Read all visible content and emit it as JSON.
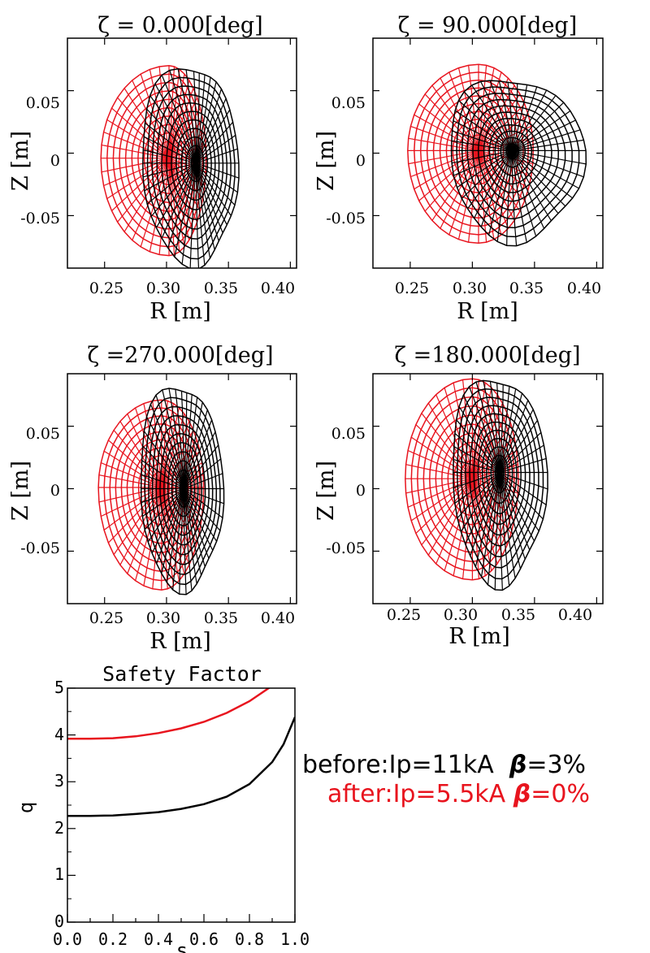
{
  "colors": {
    "before": "#000000",
    "after": "#e8141e"
  },
  "legend": {
    "before": {
      "name": "before:",
      "ip": "Ip=11kA",
      "beta_sym": "β",
      "beta": "=3%"
    },
    "after": {
      "name": "after:",
      "ip": "Ip=5.5kA",
      "beta_sym": "β",
      "beta": "=0%"
    }
  },
  "chart_data": [
    {
      "type": "line",
      "title": "ζ  =   0.000[deg]",
      "xlabel": "R [m]",
      "ylabel": "Z [m]",
      "xlim": [
        0.22,
        0.405
      ],
      "ylim": [
        -0.092,
        0.092
      ],
      "xticks": [
        "0.25",
        "0.30",
        "0.35",
        "0.40"
      ],
      "yticks": [
        "0.05",
        "0",
        "-0.05"
      ],
      "series": [
        {
          "axis_R": 0.302,
          "axis_Z": -0.004,
          "R_min": 0.247,
          "R_max": 0.332,
          "Z_max": 0.07,
          "Z_min": -0.082
        },
        {
          "axis_R": 0.324,
          "axis_Z": -0.008,
          "R_min": 0.279,
          "R_max": 0.357,
          "Z_max": 0.07,
          "Z_min": -0.088
        }
      ]
    },
    {
      "type": "line",
      "title": "ζ  = 90.000[deg]",
      "xlabel": "R [m]",
      "ylabel": "Z [m]",
      "xlim": [
        0.22,
        0.405
      ],
      "ylim": [
        -0.092,
        0.092
      ],
      "xticks": [
        "0.25",
        "0.30",
        "0.35",
        "0.40"
      ],
      "yticks": [
        "0.05",
        "0",
        "-0.05"
      ],
      "series": [
        {
          "axis_R": 0.305,
          "axis_Z": 0.002,
          "R_min": 0.248,
          "R_max": 0.349,
          "Z_max": 0.071,
          "Z_min": -0.072
        },
        {
          "axis_R": 0.332,
          "axis_Z": 0.002,
          "R_min": 0.281,
          "R_max": 0.389,
          "Z_max": 0.06,
          "Z_min": -0.07
        }
      ]
    },
    {
      "type": "line",
      "title": "ζ  =270.000[deg]",
      "xlabel": "R [m]",
      "ylabel": "Z [m]",
      "xlim": [
        0.22,
        0.405
      ],
      "ylim": [
        -0.092,
        0.092
      ],
      "xticks": [
        "0.25",
        "0.30",
        "0.35",
        "0.40"
      ],
      "yticks": [
        "0.05",
        "0",
        "-0.05"
      ],
      "series": [
        {
          "axis_R": 0.296,
          "axis_Z": 0.001,
          "R_min": 0.245,
          "R_max": 0.33,
          "Z_max": 0.071,
          "Z_min": -0.081
        },
        {
          "axis_R": 0.314,
          "axis_Z": 0.0,
          "R_min": 0.278,
          "R_max": 0.345,
          "Z_max": 0.083,
          "Z_min": -0.08
        }
      ]
    },
    {
      "type": "line",
      "title": "ζ  =180.000[deg]",
      "xlabel": "R [m]",
      "ylabel": "Z [m]",
      "xlim": [
        0.22,
        0.405
      ],
      "ylim": [
        -0.092,
        0.092
      ],
      "xticks": [
        "0.25",
        "0.30",
        "0.35",
        "0.40"
      ],
      "yticks": [
        "0.05",
        "0",
        "-0.05"
      ],
      "series": [
        {
          "axis_R": 0.3,
          "axis_Z": 0.008,
          "R_min": 0.246,
          "R_max": 0.337,
          "Z_max": 0.088,
          "Z_min": -0.073
        },
        {
          "axis_R": 0.322,
          "axis_Z": 0.013,
          "R_min": 0.283,
          "R_max": 0.359,
          "Z_max": 0.089,
          "Z_min": -0.076
        }
      ]
    },
    {
      "type": "line",
      "title": "Safety Factor",
      "xlabel": "s",
      "ylabel": "q",
      "xlim": [
        0.0,
        1.0
      ],
      "ylim": [
        0,
        5
      ],
      "xticks": [
        "0.0",
        "0.2",
        "0.4",
        "0.6",
        "0.8",
        "1.0"
      ],
      "yticks": [
        "0",
        "1",
        "2",
        "3",
        "4",
        "5"
      ],
      "x": [
        0.0,
        0.1,
        0.2,
        0.3,
        0.4,
        0.5,
        0.6,
        0.7,
        0.8,
        0.9,
        0.95,
        1.0
      ],
      "series": [
        {
          "values": [
            2.27,
            2.27,
            2.28,
            2.31,
            2.35,
            2.42,
            2.52,
            2.68,
            2.95,
            3.42,
            3.8,
            4.38
          ]
        },
        {
          "values": [
            3.92,
            3.92,
            3.93,
            3.97,
            4.04,
            4.14,
            4.28,
            4.47,
            4.72,
            5.05,
            5.25,
            5.45
          ]
        }
      ]
    }
  ]
}
